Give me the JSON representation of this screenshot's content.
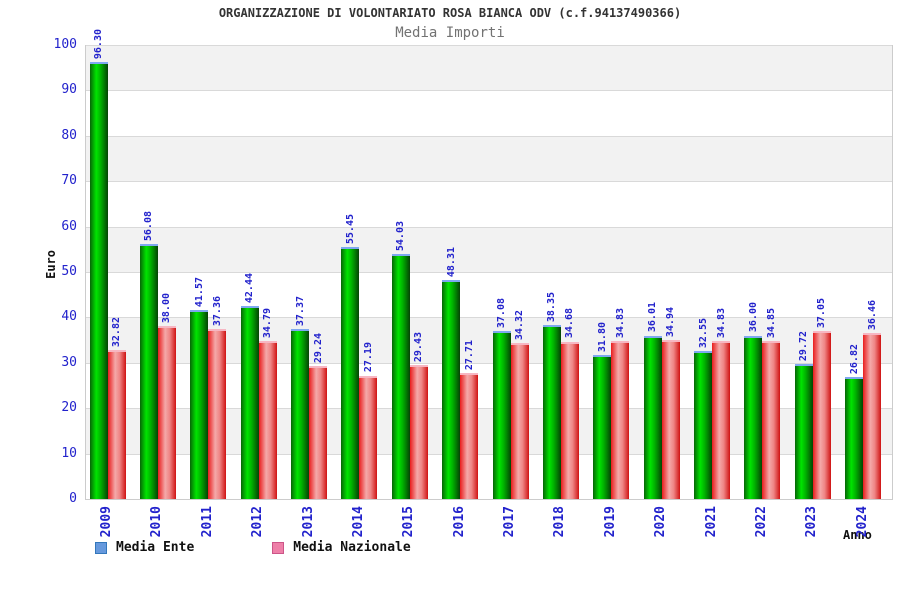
{
  "header": {
    "title": "ORGANIZZAZIONE DI VOLONTARIATO ROSA BIANCA ODV (c.f.94137490366)",
    "subtitle": "Media Importi"
  },
  "axes": {
    "y_title": "Euro",
    "x_title": "Anno",
    "y_ticks": [
      100,
      90,
      80,
      70,
      60,
      50,
      40,
      30,
      20,
      10,
      0
    ]
  },
  "legend": {
    "items": [
      {
        "label": "Media Ente",
        "swatch_fill": "#6699dd",
        "swatch_border": "#3377bb"
      },
      {
        "label": "Media Nazionale",
        "swatch_fill": "#ee7fa8",
        "swatch_border": "#cc5588"
      }
    ]
  },
  "colors": {
    "label_blue": "#2222cc",
    "band_gray": "#f2f2f2",
    "band_white": "#ffffff",
    "grid_line": "#d9d9d9",
    "green_gradient": [
      "#076607",
      "#00e400",
      "#00b000",
      "#054205"
    ],
    "green_cap": "#7fa8f0",
    "red_gradient": [
      "#e91c1c",
      "#f4a9a9",
      "#ef8585",
      "#cf1212"
    ],
    "red_cap": "#f7b6c2"
  },
  "chart_data": {
    "type": "bar",
    "title": "ORGANIZZAZIONE DI VOLONTARIATO ROSA BIANCA ODV (c.f.94137490366)",
    "subtitle": "Media Importi",
    "xlabel": "Anno",
    "ylabel": "Euro",
    "ylim": [
      0,
      100
    ],
    "y_tick_step": 10,
    "grid": "horizontal gridlines every 10 with alternating gray/white bands",
    "legend_position": "bottom-left",
    "value_labels": "shown above each bar, rotated 90deg, format 0.00",
    "categories": [
      "2009",
      "2010",
      "2011",
      "2012",
      "2013",
      "2014",
      "2015",
      "2016",
      "2017",
      "2018",
      "2019",
      "2020",
      "2021",
      "2022",
      "2023",
      "2024"
    ],
    "series": [
      {
        "name": "Media Ente",
        "bar_color": "green gradient",
        "values": [
          96.3,
          56.08,
          41.57,
          42.44,
          37.37,
          55.45,
          54.03,
          48.31,
          37.08,
          38.35,
          31.8,
          36.01,
          32.55,
          36.0,
          29.72,
          26.82
        ]
      },
      {
        "name": "Media Nazionale",
        "bar_color": "red gradient",
        "values": [
          32.82,
          38.0,
          37.36,
          34.79,
          29.24,
          27.19,
          29.43,
          27.71,
          34.32,
          34.68,
          34.83,
          34.94,
          34.83,
          34.85,
          37.05,
          36.46
        ]
      }
    ]
  }
}
